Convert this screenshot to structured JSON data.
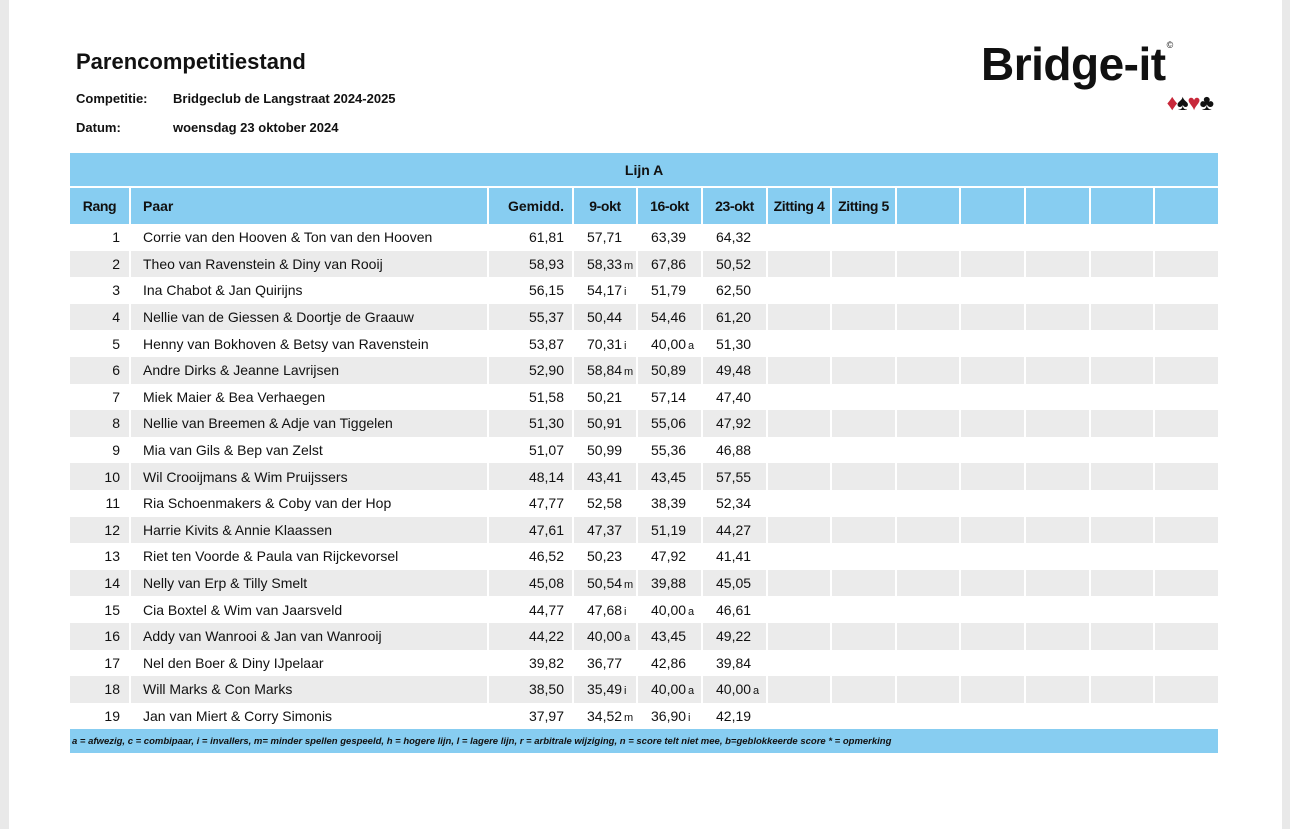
{
  "title": "Parencompetitiestand",
  "competition_label": "Competitie:",
  "competition_value": "Bridgeclub de Langstraat 2024-2025",
  "date_label": "Datum:",
  "date_value": "woensdag 23 oktober 2024",
  "logo": {
    "text": "Bridge-it",
    "suits": [
      "diamond",
      "spade",
      "heart",
      "club"
    ],
    "colors": {
      "red": "#c8283a",
      "black": "#111111"
    }
  },
  "table": {
    "line_title": "Lijn A",
    "header_color": "#87cdf1",
    "columns": [
      "Rang",
      "Paar",
      "Gemidd.",
      "9-okt",
      "16-okt",
      "23-okt",
      "Zitting 4",
      "Zitting 5",
      "",
      "",
      "",
      "",
      ""
    ],
    "rows": [
      {
        "rank": "1",
        "pair": "Corrie van den Hooven & Ton van den Hooven",
        "avg": "61,81",
        "scores": [
          {
            "v": "57,71",
            "s": ""
          },
          {
            "v": "63,39",
            "s": ""
          },
          {
            "v": "64,32",
            "s": ""
          }
        ]
      },
      {
        "rank": "2",
        "pair": "Theo van Ravenstein & Diny van Rooij",
        "avg": "58,93",
        "scores": [
          {
            "v": "58,33",
            "s": "m"
          },
          {
            "v": "67,86",
            "s": ""
          },
          {
            "v": "50,52",
            "s": ""
          }
        ]
      },
      {
        "rank": "3",
        "pair": "Ina Chabot & Jan Quirijns",
        "avg": "56,15",
        "scores": [
          {
            "v": "54,17",
            "s": "i"
          },
          {
            "v": "51,79",
            "s": ""
          },
          {
            "v": "62,50",
            "s": ""
          }
        ]
      },
      {
        "rank": "4",
        "pair": "Nellie van de Giessen & Doortje de Graauw",
        "avg": "55,37",
        "scores": [
          {
            "v": "50,44",
            "s": ""
          },
          {
            "v": "54,46",
            "s": ""
          },
          {
            "v": "61,20",
            "s": ""
          }
        ]
      },
      {
        "rank": "5",
        "pair": "Henny van Bokhoven & Betsy van Ravenstein",
        "avg": "53,87",
        "scores": [
          {
            "v": "70,31",
            "s": "i"
          },
          {
            "v": "40,00",
            "s": "a"
          },
          {
            "v": "51,30",
            "s": ""
          }
        ]
      },
      {
        "rank": "6",
        "pair": "Andre Dirks & Jeanne Lavrijsen",
        "avg": "52,90",
        "scores": [
          {
            "v": "58,84",
            "s": "m"
          },
          {
            "v": "50,89",
            "s": ""
          },
          {
            "v": "49,48",
            "s": ""
          }
        ]
      },
      {
        "rank": "7",
        "pair": "Miek Maier & Bea Verhaegen",
        "avg": "51,58",
        "scores": [
          {
            "v": "50,21",
            "s": ""
          },
          {
            "v": "57,14",
            "s": ""
          },
          {
            "v": "47,40",
            "s": ""
          }
        ]
      },
      {
        "rank": "8",
        "pair": "Nellie van Breemen & Adje van Tiggelen",
        "avg": "51,30",
        "scores": [
          {
            "v": "50,91",
            "s": ""
          },
          {
            "v": "55,06",
            "s": ""
          },
          {
            "v": "47,92",
            "s": ""
          }
        ]
      },
      {
        "rank": "9",
        "pair": "Mia van Gils & Bep van Zelst",
        "avg": "51,07",
        "scores": [
          {
            "v": "50,99",
            "s": ""
          },
          {
            "v": "55,36",
            "s": ""
          },
          {
            "v": "46,88",
            "s": ""
          }
        ]
      },
      {
        "rank": "10",
        "pair": "Wil Crooijmans & Wim Pruijssers",
        "avg": "48,14",
        "scores": [
          {
            "v": "43,41",
            "s": ""
          },
          {
            "v": "43,45",
            "s": ""
          },
          {
            "v": "57,55",
            "s": ""
          }
        ]
      },
      {
        "rank": "11",
        "pair": "Ria Schoenmakers & Coby van der Hop",
        "avg": "47,77",
        "scores": [
          {
            "v": "52,58",
            "s": ""
          },
          {
            "v": "38,39",
            "s": ""
          },
          {
            "v": "52,34",
            "s": ""
          }
        ]
      },
      {
        "rank": "12",
        "pair": "Harrie Kivits & Annie Klaassen",
        "avg": "47,61",
        "scores": [
          {
            "v": "47,37",
            "s": ""
          },
          {
            "v": "51,19",
            "s": ""
          },
          {
            "v": "44,27",
            "s": ""
          }
        ]
      },
      {
        "rank": "13",
        "pair": "Riet ten Voorde & Paula van Rijckevorsel",
        "avg": "46,52",
        "scores": [
          {
            "v": "50,23",
            "s": ""
          },
          {
            "v": "47,92",
            "s": ""
          },
          {
            "v": "41,41",
            "s": ""
          }
        ]
      },
      {
        "rank": "14",
        "pair": "Nelly van Erp & Tilly Smelt",
        "avg": "45,08",
        "scores": [
          {
            "v": "50,54",
            "s": "m"
          },
          {
            "v": "39,88",
            "s": ""
          },
          {
            "v": "45,05",
            "s": ""
          }
        ]
      },
      {
        "rank": "15",
        "pair": "Cia Boxtel & Wim van Jaarsveld",
        "avg": "44,77",
        "scores": [
          {
            "v": "47,68",
            "s": "i"
          },
          {
            "v": "40,00",
            "s": "a"
          },
          {
            "v": "46,61",
            "s": ""
          }
        ]
      },
      {
        "rank": "16",
        "pair": "Addy van Wanrooi & Jan van Wanrooij",
        "avg": "44,22",
        "scores": [
          {
            "v": "40,00",
            "s": "a"
          },
          {
            "v": "43,45",
            "s": ""
          },
          {
            "v": "49,22",
            "s": ""
          }
        ]
      },
      {
        "rank": "17",
        "pair": "Nel den Boer & Diny IJpelaar",
        "avg": "39,82",
        "scores": [
          {
            "v": "36,77",
            "s": ""
          },
          {
            "v": "42,86",
            "s": ""
          },
          {
            "v": "39,84",
            "s": ""
          }
        ]
      },
      {
        "rank": "18",
        "pair": "Will Marks & Con Marks",
        "avg": "38,50",
        "scores": [
          {
            "v": "35,49",
            "s": "i"
          },
          {
            "v": "40,00",
            "s": "a"
          },
          {
            "v": "40,00",
            "s": "a"
          }
        ]
      },
      {
        "rank": "19",
        "pair": "Jan van Miert & Corry Simonis",
        "avg": "37,97",
        "scores": [
          {
            "v": "34,52",
            "s": "m"
          },
          {
            "v": "36,90",
            "s": "i"
          },
          {
            "v": "42,19",
            "s": ""
          }
        ]
      }
    ],
    "legend": "a = afwezig, c = combipaar, i = invallers, m= minder spellen gespeeld, h = hogere lijn, l = lagere lijn, r = arbitrale wijziging, n = score telt niet mee, b=geblokkeerde score  * = opmerking"
  }
}
